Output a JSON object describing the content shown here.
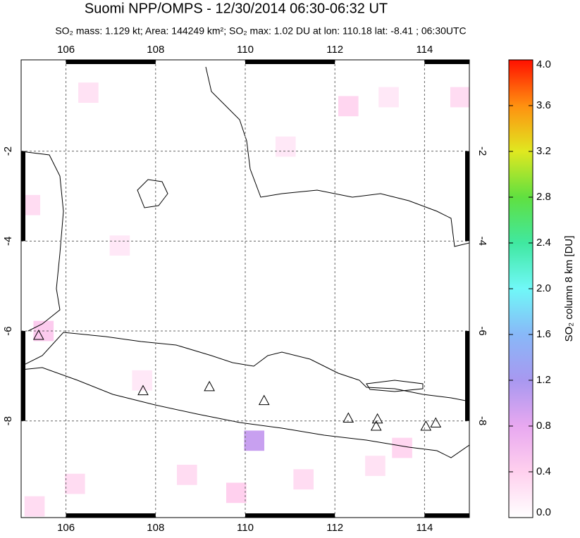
{
  "chart_data": {
    "type": "map",
    "title": "Suomi NPP/OMPS - 12/30/2014 06:30-06:32 UT",
    "subtitle": "SO₂ mass: 1.129 kt; Area: 144249 km²; SO₂ max: 1.02 DU at lon: 110.18 lat: -8.41 ; 06:30UTC",
    "xlim": [
      105,
      115
    ],
    "ylim": [
      -10.15,
      0.03
    ],
    "xticks": [
      106,
      108,
      110,
      112,
      114
    ],
    "yticks": [
      -2,
      -4,
      -6,
      -8
    ],
    "grid": true,
    "colorbar": {
      "label": "SO₂ column 8 km [DU]",
      "lim": [
        0,
        4
      ],
      "ticks": [
        {
          "value": 0,
          "label": "0.0"
        },
        {
          "value": 0.4,
          "label": "0.4"
        },
        {
          "value": 0.8,
          "label": "0.8"
        },
        {
          "value": 1.2,
          "label": "1.2"
        },
        {
          "value": 1.6,
          "label": "1.6"
        },
        {
          "value": 2,
          "label": "2.0"
        },
        {
          "value": 2.4,
          "label": "2.4"
        },
        {
          "value": 2.8,
          "label": "2.8"
        },
        {
          "value": 3.2,
          "label": "3.2"
        },
        {
          "value": 3.6,
          "label": "3.6"
        },
        {
          "value": 4,
          "label": "4.0"
        }
      ]
    },
    "volcanoes": {
      "lon": [
        105.39,
        107.72,
        109.2,
        110.42,
        112.3,
        112.95,
        112.92,
        114.03,
        114.25
      ],
      "lat": [
        -6.11,
        -7.34,
        -7.25,
        -7.56,
        -7.95,
        -7.97,
        -8.13,
        -8.13,
        -8.06
      ]
    },
    "cells": {
      "lon": [
        110.2,
        106.5,
        107.2,
        112.3,
        113.2,
        114.8,
        105.2,
        105.5,
        109.8,
        108.7,
        111.3,
        112.9,
        106.2,
        107.7,
        113.5,
        110.9,
        105.3
      ],
      "lat": [
        -8.44,
        -0.7,
        -4.1,
        -1.0,
        -0.8,
        -0.8,
        -3.2,
        -6.0,
        -9.6,
        -9.2,
        -9.3,
        -9.0,
        -9.4,
        -7.1,
        -8.6,
        -1.9,
        -9.9
      ],
      "values": [
        1.0,
        0.25,
        0.2,
        0.35,
        0.2,
        0.3,
        0.3,
        0.45,
        0.4,
        0.3,
        0.3,
        0.25,
        0.3,
        0.2,
        0.35,
        0.2,
        0.3
      ]
    }
  }
}
